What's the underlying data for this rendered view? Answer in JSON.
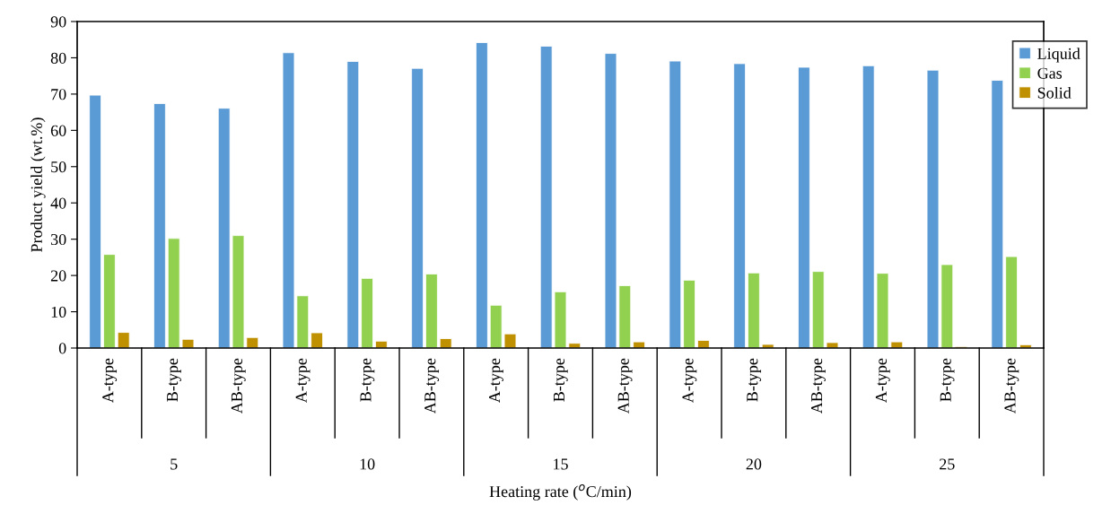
{
  "chart_data": {
    "type": "bar",
    "xlabel": "Heating rate ($^{o}$C/min)",
    "ylabel": "Product yield (wt.%)",
    "categories": [
      "A-type",
      "B-type",
      "AB-type",
      "A-type",
      "B-type",
      "AB-type",
      "A-type",
      "B-type",
      "AB-type",
      "A-type",
      "B-type",
      "AB-type",
      "A-type",
      "B-type",
      "AB-type"
    ],
    "annotations": [
      "5",
      "10",
      "15",
      "20",
      "25"
    ],
    "series": [
      {
        "name": "Liquid",
        "color": "#5b9bd5",
        "values": [
          69.7,
          67.4,
          66.1,
          81.4,
          79.0,
          77.1,
          84.2,
          83.2,
          81.2,
          79.1,
          78.4,
          77.4,
          77.8,
          76.6,
          73.8
        ]
      },
      {
        "name": "Gas",
        "color": "#92d050",
        "values": [
          25.8,
          30.2,
          31.0,
          14.4,
          19.2,
          20.4,
          11.8,
          15.5,
          17.2,
          18.7,
          20.7,
          21.1,
          20.6,
          23.0,
          25.2
        ]
      },
      {
        "name": "Solid",
        "color": "#bf9000",
        "values": [
          4.3,
          2.4,
          2.9,
          4.2,
          1.9,
          2.6,
          3.9,
          1.3,
          1.7,
          2.1,
          1.0,
          1.5,
          1.7,
          0.4,
          0.9
        ]
      }
    ],
    "ylim": [
      0,
      90
    ],
    "yticks": [
      0,
      10,
      20,
      30,
      40,
      50,
      60,
      70,
      80,
      90
    ],
    "grid": false,
    "legend": "top right"
  }
}
